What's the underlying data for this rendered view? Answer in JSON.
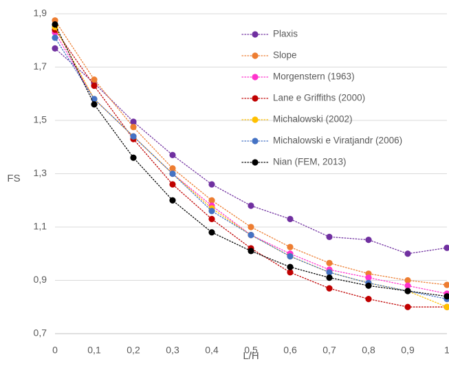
{
  "chart_data": {
    "type": "line",
    "title": "",
    "xlabel": "L/H",
    "ylabel": "FS",
    "xlim": [
      0,
      1
    ],
    "ylim": [
      0.7,
      1.9
    ],
    "x_ticks": [
      0,
      0.1,
      0.2,
      0.3,
      0.4,
      0.5,
      0.6,
      0.7,
      0.8,
      0.9,
      1
    ],
    "x_tick_labels": [
      "0",
      "0,1",
      "0,2",
      "0,3",
      "0,4",
      "0,5",
      "0,6",
      "0,7",
      "0,8",
      "0,9",
      "1"
    ],
    "y_ticks": [
      0.7,
      0.9,
      1.1,
      1.3,
      1.5,
      1.7,
      1.9
    ],
    "y_tick_labels": [
      "0,7",
      "0,9",
      "1,1",
      "1,3",
      "1,5",
      "1,7",
      "1,9"
    ],
    "grid": "horizontal",
    "legend_position": "top-right",
    "series": [
      {
        "name": "Plaxis",
        "color": "#7030A0",
        "x": [
          0,
          0.1,
          0.2,
          0.3,
          0.4,
          0.5,
          0.6,
          0.7,
          0.8,
          0.9,
          1
        ],
        "y": [
          1.77,
          1.64,
          1.495,
          1.37,
          1.26,
          1.18,
          1.13,
          1.063,
          1.052,
          1.0,
          1.022
        ]
      },
      {
        "name": "Slope",
        "color": "#ED7D31",
        "x": [
          0,
          0.1,
          0.2,
          0.3,
          0.4,
          0.5,
          0.6,
          0.7,
          0.8,
          0.9,
          1
        ],
        "y": [
          1.875,
          1.653,
          1.475,
          1.32,
          1.2,
          1.1,
          1.025,
          0.965,
          0.925,
          0.9,
          0.883
        ]
      },
      {
        "name": "Morgenstern (1963)",
        "color": "#FF33CC",
        "x": [
          0,
          0.1,
          0.2,
          0.3,
          0.4,
          0.5,
          0.6,
          0.7,
          0.8,
          0.9,
          1
        ],
        "y": [
          1.83,
          1.58,
          1.44,
          1.3,
          1.18,
          1.07,
          1.0,
          0.94,
          0.91,
          0.88,
          0.85
        ]
      },
      {
        "name": "Lane e Griffiths (2000)",
        "color": "#C00000",
        "x": [
          0,
          0.1,
          0.2,
          0.3,
          0.4,
          0.5,
          0.6,
          0.7,
          0.8,
          0.9,
          1
        ],
        "y": [
          1.84,
          1.63,
          1.43,
          1.26,
          1.13,
          1.02,
          0.93,
          0.87,
          0.83,
          0.8,
          0.8
        ]
      },
      {
        "name": "Michalowski (2002)",
        "color": "#FFC000",
        "x": [
          0,
          0.1,
          0.2,
          0.3,
          0.4,
          0.5,
          0.6,
          0.7,
          0.8,
          0.9,
          1
        ],
        "y": [
          1.85,
          1.58,
          1.44,
          1.3,
          1.17,
          1.07,
          0.99,
          0.93,
          0.89,
          0.86,
          0.8
        ]
      },
      {
        "name": "Michalowski e Viratjandr (2006)",
        "color": "#4472C4",
        "x": [
          0,
          0.1,
          0.2,
          0.3,
          0.4,
          0.5,
          0.6,
          0.7,
          0.8,
          0.9,
          1
        ],
        "y": [
          1.81,
          1.58,
          1.44,
          1.3,
          1.16,
          1.07,
          0.99,
          0.93,
          0.89,
          0.86,
          0.83
        ]
      },
      {
        "name": "Nian (FEM, 2013)",
        "color": "#000000",
        "x": [
          0,
          0.1,
          0.2,
          0.3,
          0.4,
          0.5,
          0.6,
          0.7,
          0.8,
          0.9,
          1
        ],
        "y": [
          1.86,
          1.56,
          1.36,
          1.2,
          1.08,
          1.01,
          0.95,
          0.91,
          0.88,
          0.86,
          0.84
        ]
      }
    ]
  }
}
